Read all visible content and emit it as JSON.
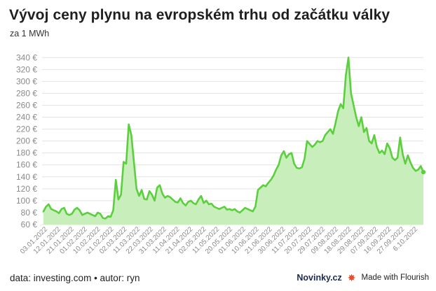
{
  "header": {
    "title": "Vývoj ceny plynu na evropském trhu od začátku války",
    "subtitle": "za 1 MWh"
  },
  "footer": {
    "source": "data: investing.com • autor: ryn",
    "brand": "Novinky.cz",
    "made_with": "Made with Flourish",
    "flourish_icon": "flourish-burst-icon"
  },
  "colors": {
    "line": "#5ccf3f",
    "area": "#c8eebc",
    "grid": "#e2e2e2",
    "tick_text": "#8a8a8a",
    "flourish": "#e94e2f"
  },
  "chart_data": {
    "type": "area",
    "title": "Vývoj ceny plynu na evropském trhu od začátku války",
    "subtitle": "za 1 MWh",
    "unit": "€",
    "ylim": [
      60,
      345
    ],
    "yticks": [
      "60 €",
      "80 €",
      "100 €",
      "120 €",
      "140 €",
      "160 €",
      "180 €",
      "200 €",
      "220 €",
      "240 €",
      "260 €",
      "280 €",
      "300 €",
      "320 €",
      "340 €"
    ],
    "ytick_values": [
      60,
      80,
      100,
      120,
      140,
      160,
      180,
      200,
      220,
      240,
      260,
      280,
      300,
      320,
      340
    ],
    "grid": "horizontal",
    "xticks": [
      "03.01.2022",
      "12.01.2022",
      "21.01.2022",
      "01.02.2022",
      "10.02.2022",
      "21.02.2022",
      "02.03.2022",
      "11.03.2022",
      "22.03.2022",
      "31.03.2022",
      "11.04.2022",
      "21.04.2022",
      "02.05.2022",
      "11.05.2022",
      "20.05.2022",
      "01.06.2022",
      "10.06.2022",
      "21.06.2022",
      "30.06.2022",
      "11.07.2022",
      "20.07.2022",
      "29.07.2022",
      "09.08.2022",
      "18.08.2022",
      "29.08.2022",
      "07.09.2022",
      "16.09.2022",
      "27.09.2022",
      "6.10.2022"
    ],
    "series": [
      {
        "values": [
          82,
          90,
          94,
          86,
          84,
          82,
          79,
          86,
          88,
          78,
          76,
          78,
          85,
          88,
          84,
          76,
          78,
          80,
          78,
          76,
          74,
          80,
          78,
          71,
          70,
          74,
          73,
          84,
          135,
          102,
          110,
          165,
          162,
          228,
          210,
          165,
          120,
          108,
          118,
          103,
          102,
          116,
          110,
          100,
          122,
          126,
          112,
          105,
          108,
          106,
          102,
          98,
          97,
          104,
          96,
          92,
          98,
          100,
          96,
          94,
          102,
          108,
          96,
          100,
          94,
          95,
          90,
          88,
          86,
          88,
          90,
          85,
          86,
          84,
          86,
          82,
          80,
          84,
          88,
          86,
          84,
          82,
          90,
          118,
          122,
          126,
          124,
          130,
          135,
          142,
          152,
          160,
          176,
          183,
          172,
          178,
          180,
          162,
          155,
          154,
          156,
          170,
          200,
          195,
          190,
          194,
          200,
          198,
          200,
          210,
          215,
          220,
          212,
          230,
          250,
          262,
          255,
          310,
          340,
          280,
          260,
          240,
          225,
          240,
          215,
          222,
          200,
          196,
          210,
          190,
          180,
          184,
          178,
          196,
          188,
          172,
          168,
          172,
          206,
          178,
          162,
          176,
          164,
          155,
          150,
          152,
          158,
          148
        ]
      }
    ]
  }
}
